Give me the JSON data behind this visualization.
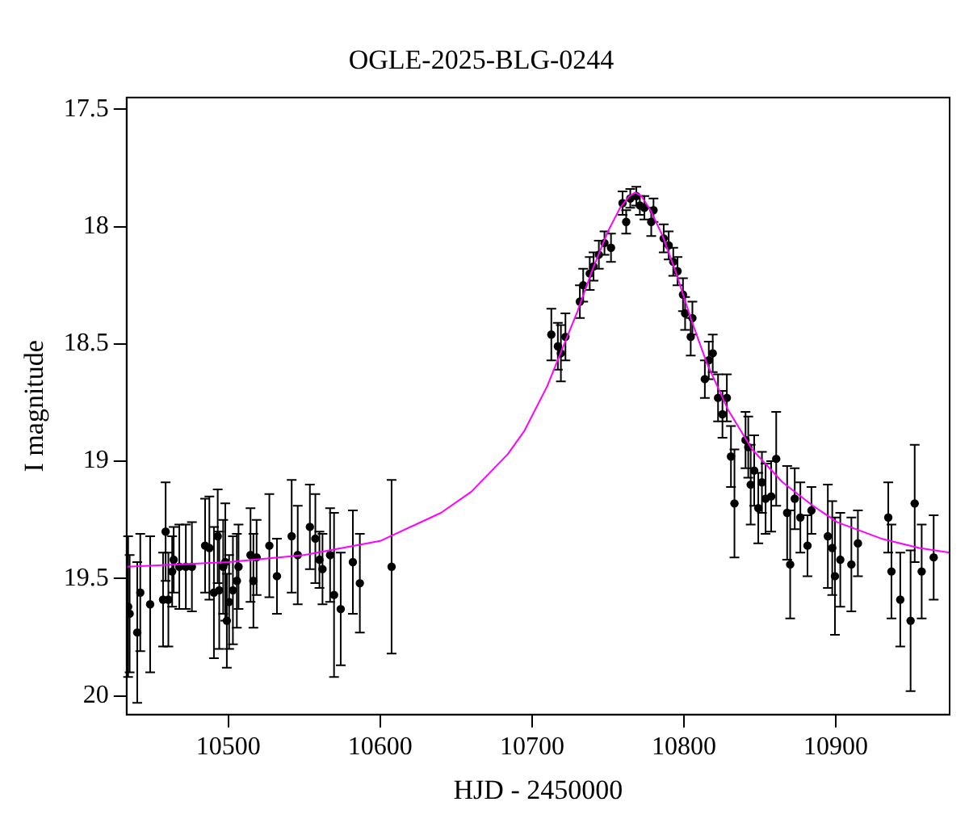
{
  "chart_data": {
    "type": "scatter",
    "title": "OGLE-2025-BLG-0244",
    "xlabel": "HJD - 2450000",
    "ylabel": "I magnitude",
    "xlim": [
      10433,
      10975
    ],
    "xticks": [
      10500,
      10600,
      10700,
      10800,
      10900
    ],
    "ylim": [
      20.08,
      17.45
    ],
    "yticks": [
      17.5,
      18,
      18.5,
      19,
      19.5,
      20
    ],
    "grid": false,
    "series": [
      {
        "color": "#000000",
        "marker": "circle",
        "x": [
          10434,
          10435,
          10440,
          10442,
          10448.5,
          10458.7,
          10457,
          10460.5,
          10463,
          10464,
          10467.7,
          10472,
          10476,
          10484.7,
          10487.5,
          10490.5,
          10493,
          10494,
          10496.6,
          10498,
          10499,
          10500.5,
          10503,
          10505.6,
          10506.7,
          10514.6,
          10516.5,
          10518.6,
          10527,
          10532,
          10541.7,
          10545.7,
          10553.7,
          10557.3,
          10560,
          10562,
          10567,
          10569.6,
          10574,
          10582,
          10586.6,
          10607.5,
          10712.7,
          10717,
          10719,
          10722,
          10731.5,
          10733.7,
          10738,
          10740.5,
          10744,
          10747.7,
          10752,
          10759.6,
          10762,
          10764.7,
          10768.7,
          10771,
          10774,
          10778.5,
          10780,
          10786.7,
          10790,
          10793,
          10795.8,
          10799.4,
          10800.8,
          10805.6,
          10804.5,
          10813.8,
          10816.4,
          10819,
          10822.5,
          10825.4,
          10828.3,
          10831,
          10833.3,
          10840.6,
          10842.4,
          10844,
          10846.3,
          10849,
          10851.4,
          10853.8,
          10857.5,
          10860.8,
          10868,
          10870,
          10873,
          10876.7,
          10881.4,
          10884,
          10894.8,
          10897.7,
          10899.5,
          10903,
          10910.3,
          10914.6,
          10934.6,
          10936.7,
          10942.5,
          10949.3,
          10952,
          10956.6,
          10964.5
        ],
        "values": [
          19.62,
          19.65,
          19.73,
          19.56,
          19.61,
          19.3,
          19.59,
          19.59,
          19.47,
          19.42,
          19.45,
          19.45,
          19.45,
          19.36,
          19.37,
          19.56,
          19.32,
          19.55,
          19.45,
          19.43,
          19.68,
          19.6,
          19.55,
          19.51,
          19.45,
          19.4,
          19.51,
          19.41,
          19.36,
          19.49,
          19.32,
          19.4,
          19.28,
          19.33,
          19.42,
          19.46,
          19.4,
          19.57,
          19.63,
          19.43,
          19.52,
          19.45,
          18.46,
          18.51,
          18.54,
          18.47,
          18.32,
          18.25,
          18.2,
          18.17,
          18.12,
          18.07,
          18.09,
          17.9,
          17.98,
          17.88,
          17.87,
          17.91,
          17.92,
          17.98,
          17.93,
          18.05,
          18.08,
          18.15,
          18.19,
          18.29,
          18.37,
          18.39,
          18.47,
          18.65,
          18.57,
          18.54,
          18.73,
          18.8,
          18.73,
          18.98,
          19.18,
          18.91,
          18.94,
          19.1,
          19.04,
          19.2,
          19.09,
          19.16,
          19.15,
          18.99,
          19.22,
          19.44,
          19.16,
          19.24,
          19.36,
          19.21,
          19.32,
          19.37,
          19.49,
          19.42,
          19.44,
          19.35,
          19.24,
          19.47,
          19.59,
          19.68,
          19.18,
          19.47,
          19.41
        ],
        "errors": [
          0.3,
          0.25,
          0.3,
          0.25,
          0.29,
          0.21,
          0.2,
          0.2,
          0.15,
          0.14,
          0.18,
          0.18,
          0.19,
          0.2,
          0.22,
          0.28,
          0.2,
          0.25,
          0.2,
          0.25,
          0.2,
          0.2,
          0.23,
          0.2,
          0.18,
          0.2,
          0.2,
          0.16,
          0.22,
          0.16,
          0.24,
          0.21,
          0.18,
          0.19,
          0.12,
          0.15,
          0.2,
          0.35,
          0.24,
          0.22,
          0.21,
          0.37,
          0.11,
          0.1,
          0.12,
          0.1,
          0.07,
          0.07,
          0.07,
          0.06,
          0.06,
          0.05,
          0.06,
          0.05,
          0.05,
          0.04,
          0.04,
          0.04,
          0.05,
          0.06,
          0.05,
          0.06,
          0.06,
          0.06,
          0.06,
          0.07,
          0.07,
          0.07,
          0.08,
          0.08,
          0.08,
          0.08,
          0.1,
          0.1,
          0.1,
          0.13,
          0.23,
          0.12,
          0.13,
          0.17,
          0.15,
          0.15,
          0.13,
          0.15,
          0.15,
          0.2,
          0.2,
          0.23,
          0.13,
          0.15,
          0.13,
          0.1,
          0.22,
          0.2,
          0.25,
          0.2,
          0.2,
          0.14,
          0.15,
          0.2,
          0.2,
          0.3,
          0.25,
          0.2,
          0.18
        ]
      },
      {
        "type": "line",
        "color": "#ff00ff",
        "marker": "none",
        "x": [
          10433,
          10500,
          10550,
          10600,
          10640,
          10660,
          10684,
          10695,
          10710,
          10720,
          10730,
          10740,
          10750,
          10758,
          10764,
          10768,
          10772,
          10778,
          10786,
          10795,
          10805,
          10815,
          10829,
          10845,
          10865,
          10885,
          10901,
          10930,
          10955,
          10975
        ],
        "values": [
          19.45,
          19.43,
          19.4,
          19.34,
          19.22,
          19.13,
          18.97,
          18.87,
          18.68,
          18.52,
          18.36,
          18.18,
          18.02,
          17.92,
          17.87,
          17.855,
          17.87,
          17.93,
          18.04,
          18.2,
          18.4,
          18.58,
          18.78,
          18.95,
          19.09,
          19.19,
          19.26,
          19.33,
          19.37,
          19.39
        ]
      }
    ]
  }
}
